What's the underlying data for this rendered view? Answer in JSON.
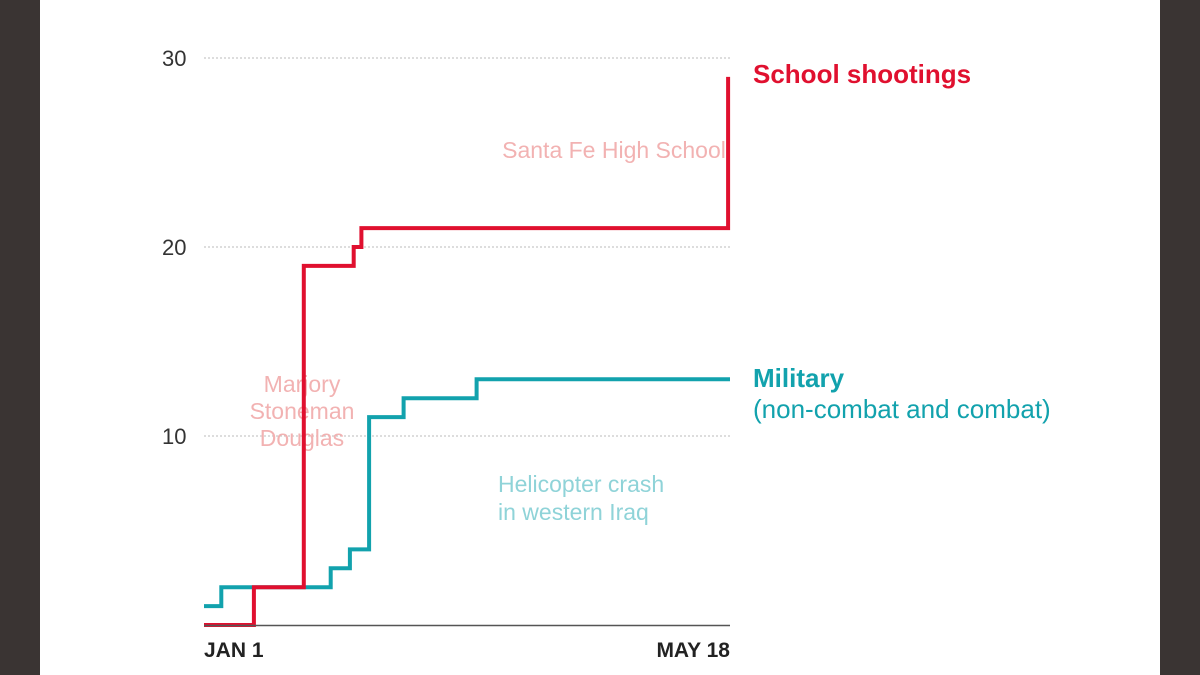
{
  "colors": {
    "school": "#e0102f",
    "military": "#12a2ad",
    "grid": "#bbbbbb",
    "axis": "#555555"
  },
  "chart_data": {
    "type": "line",
    "step": true,
    "xlabel": "",
    "ylabel": "",
    "ylim": [
      0,
      30
    ],
    "yticks": [
      10,
      20,
      30
    ],
    "xlim": [
      0,
      137
    ],
    "xtick_labels": [
      "JAN 1",
      "MAY 18"
    ],
    "grid": true,
    "series": [
      {
        "name": "School shootings",
        "x": [
          0,
          13,
          13,
          26,
          26,
          39,
          39,
          41,
          41,
          47,
          47,
          136.5,
          136.5
        ],
        "y": [
          0,
          0,
          2,
          2,
          19,
          19,
          20,
          20,
          21,
          21,
          21,
          21,
          29
        ]
      },
      {
        "name": "Military (non-combat and combat)",
        "x": [
          0,
          4.5,
          4.5,
          28,
          28,
          33,
          33,
          38,
          38,
          43,
          43,
          52,
          52,
          71,
          71,
          137
        ],
        "y": [
          1,
          1,
          2,
          2,
          2,
          2,
          3,
          3,
          4,
          4,
          11,
          11,
          12,
          12,
          13,
          13
        ]
      }
    ],
    "legend": {
      "school_label": "School shootings",
      "military_label": "Military",
      "military_sub": "(non-combat and combat)"
    },
    "annotations": {
      "santa_fe": "Santa Fe High School",
      "parkland": [
        "Marjory",
        "Stoneman",
        "Douglas"
      ],
      "helicopter": [
        "Helicopter crash",
        "in western Iraq"
      ]
    }
  }
}
